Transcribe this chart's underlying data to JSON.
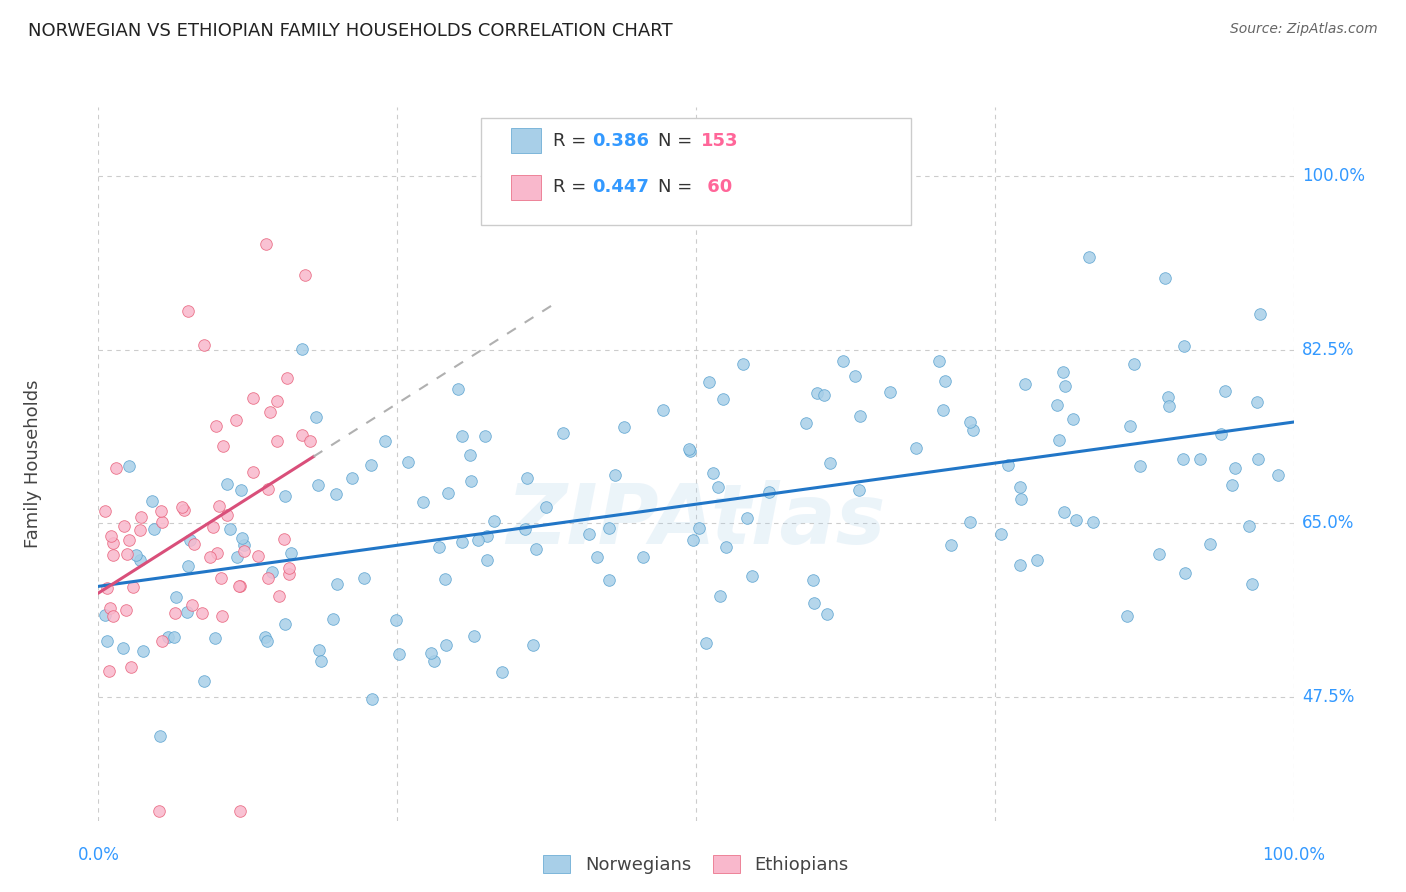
{
  "title": "NORWEGIAN VS ETHIOPIAN FAMILY HOUSEHOLDS CORRELATION CHART",
  "source": "Source: ZipAtlas.com",
  "ylabel": "Family Households",
  "watermark": "ZIPAtlas",
  "norwegian_color": "#a8cfe8",
  "norwegian_edge_color": "#5ba3d0",
  "ethiopian_color": "#f9b8cc",
  "ethiopian_edge_color": "#e8607a",
  "trend_norwegian_color": "#2176c7",
  "trend_ethiopian_color": "#d94f7a",
  "trend_dashed_color": "#b0b0b0",
  "background_color": "#ffffff",
  "grid_color": "#cccccc",
  "title_color": "#222222",
  "axis_label_color": "#3399ff",
  "watermark_color": "#a8cfe8",
  "legend_r_color": "#3399ff",
  "legend_n_color": "#ff6699",
  "xmin": 0.0,
  "xmax": 1.0,
  "ymin": 35.0,
  "ymax": 107.0,
  "y_ticks": [
    47.5,
    65.0,
    82.5,
    100.0
  ],
  "y_tick_labels": [
    "47.5%",
    "65.0%",
    "82.5%",
    "100.0%"
  ],
  "x_ticks": [
    0.0,
    0.25,
    0.5,
    0.75,
    1.0
  ],
  "x_tick_labels_show": [
    "0.0%",
    "100.0%"
  ],
  "norwegian_R": 0.386,
  "norwegian_N": 153,
  "ethiopian_R": 0.447,
  "ethiopian_N": 60
}
